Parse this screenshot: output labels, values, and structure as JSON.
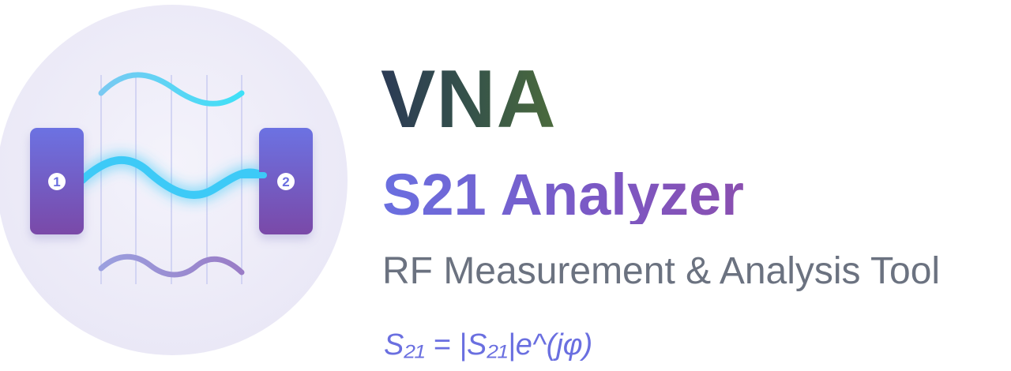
{
  "logo": {
    "port_1_label": "1",
    "port_2_label": "2",
    "colors": {
      "circle_bg": "#ecebf7",
      "port_gradient_top": "#6c6fe0",
      "port_gradient_bottom": "#7a49a8",
      "wave_cyan": "#3ecbf5",
      "wave_purple": "#9b8ad0",
      "gridline": "#c8ccf0"
    }
  },
  "title": {
    "main": "VNA",
    "product": "S21 Analyzer",
    "subtitle": "RF Measurement & Analysis Tool",
    "formula": "S₂₁ = |S₂₁|e^(jφ)"
  }
}
